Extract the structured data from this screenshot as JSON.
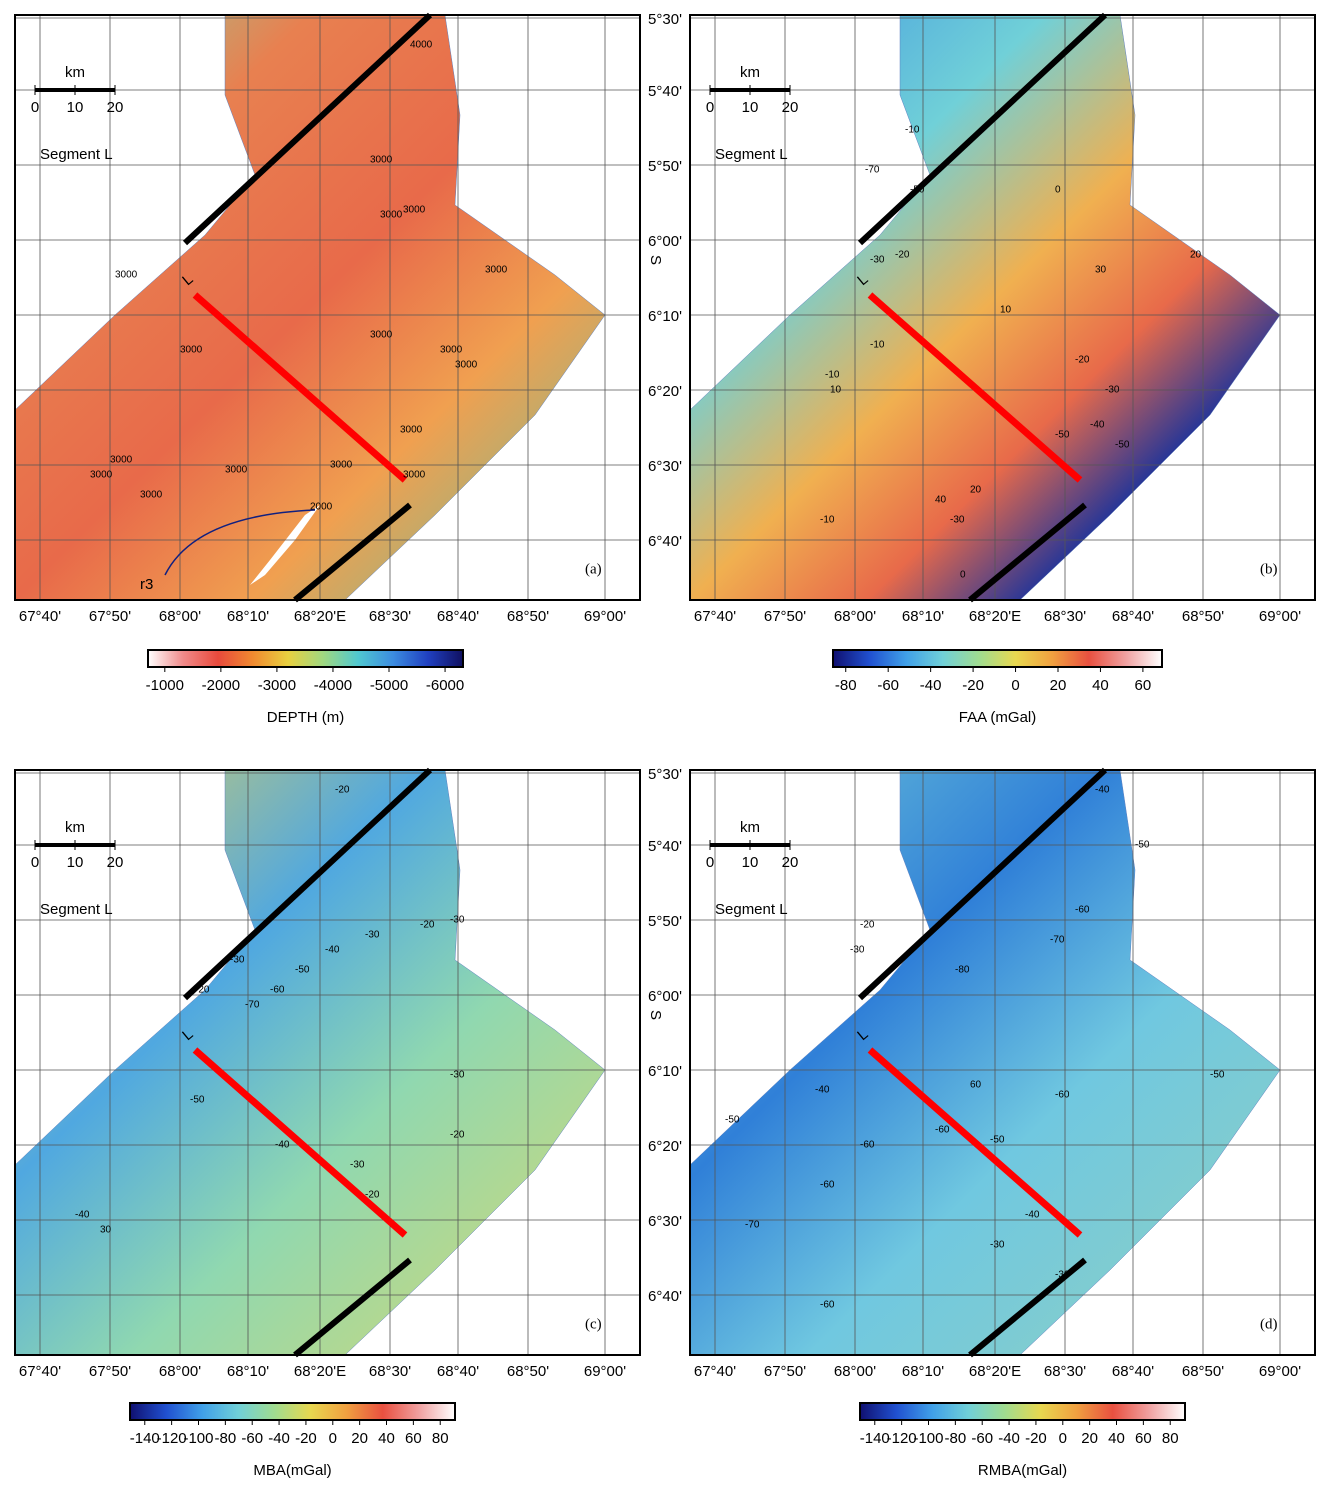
{
  "panels": [
    {
      "label": "(a)",
      "scale_title": "km",
      "scale_ticks": [
        0,
        10,
        20
      ],
      "segment": "Segment L",
      "profile": "L",
      "colorbar": {
        "title": "DEPTH (m)",
        "lim": [
          -700,
          -6320
        ],
        "ticks": [
          -1000,
          -2000,
          -3000,
          -4000,
          -5000,
          -6000
        ],
        "colors": [
          "#ffffff",
          "#f08a8a",
          "#e84a3c",
          "#f08a30",
          "#e8d040",
          "#a0d880",
          "#50c8d0",
          "#3c8ce0",
          "#2040c0",
          "#101060"
        ]
      },
      "contour_labels": [
        "4000",
        "3000",
        "3000",
        "3000",
        "3000",
        "3000",
        "3000",
        "3000",
        "3000",
        "3000",
        "3000",
        "3000",
        "3000",
        "3000",
        "3000",
        "3000",
        "3000",
        "2000"
      ]
    },
    {
      "label": "(b)",
      "scale_title": "km",
      "scale_ticks": [
        0,
        10,
        20
      ],
      "segment": "Segment L",
      "profile": "L",
      "colorbar": {
        "title": "FAA (mGal)",
        "lim": [
          -86,
          69
        ],
        "ticks": [
          -80,
          -60,
          -40,
          -20,
          0,
          20,
          40,
          60
        ],
        "colors": [
          "#101070",
          "#2050d0",
          "#40a0e8",
          "#70d0d8",
          "#a0dc90",
          "#e8d850",
          "#f0a040",
          "#e85040",
          "#f0a0a0",
          "#ffffff"
        ]
      },
      "contour_labels": [
        "-10",
        "-50",
        "-70",
        "0",
        "20",
        "30",
        "10",
        "-30",
        "-20",
        "-10",
        "-10",
        "-20",
        "-30",
        "-50",
        "-40",
        "-50",
        "40",
        "20",
        "-30",
        "0",
        "-10",
        "10"
      ]
    },
    {
      "label": "(c)",
      "scale_title": "km",
      "scale_ticks": [
        0,
        10,
        20
      ],
      "segment": "Segment L",
      "profile": "L",
      "colorbar": {
        "title": "MBA(mGal)",
        "lim": [
          -151,
          91
        ],
        "ticks": [
          -140,
          -120,
          -100,
          -80,
          -60,
          -40,
          -20,
          0,
          20,
          40,
          60,
          80
        ],
        "colors": [
          "#101070",
          "#2050d0",
          "#40a0e8",
          "#70d0d8",
          "#a0dc90",
          "#e8d850",
          "#f0a040",
          "#e85040",
          "#f0a0a0",
          "#ffffff"
        ]
      },
      "contour_labels": [
        "-20",
        "-30",
        "-30",
        "-20",
        "-70",
        "-60",
        "-50",
        "-40",
        "-30",
        "-20",
        "-30",
        "-50",
        "-40",
        "-30",
        "-20",
        "-40",
        "30",
        "-20"
      ]
    },
    {
      "label": "(d)",
      "scale_title": "km",
      "scale_ticks": [
        0,
        10,
        20
      ],
      "segment": "Segment L",
      "profile": "L",
      "colorbar": {
        "title": "RMBA(mGal)",
        "lim": [
          -151,
          91
        ],
        "ticks": [
          -140,
          -120,
          -100,
          -80,
          -60,
          -40,
          -20,
          0,
          20,
          40,
          60,
          80
        ],
        "colors": [
          "#101070",
          "#2050d0",
          "#40a0e8",
          "#70d0d8",
          "#a0dc90",
          "#e8d850",
          "#f0a040",
          "#e85040",
          "#f0a0a0",
          "#ffffff"
        ]
      },
      "contour_labels": [
        "-40",
        "-50",
        "-60",
        "-70",
        "-80",
        "-30",
        "-20",
        "60",
        "-50",
        "-60",
        "-60",
        "-60",
        "-50",
        "-40",
        "-30",
        "-70",
        "-60",
        "-60",
        "-50",
        "-40",
        "-30"
      ]
    }
  ],
  "lon_labels": [
    "67°40'",
    "67°50'",
    "68°00'",
    "68°10'",
    "68°20'E",
    "68°30'",
    "68°40'",
    "68°50'",
    "69°00'"
  ],
  "lat_labels": [
    "5°30'",
    "5°40'",
    "5°50'",
    "6°00'",
    "6°10'",
    "6°20'",
    "6°30'",
    "6°40'"
  ],
  "lat_hemisphere": "S",
  "annotation": "r3"
}
